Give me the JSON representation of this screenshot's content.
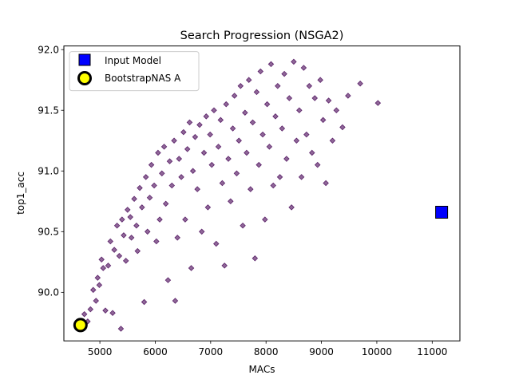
{
  "chart_data": {
    "type": "scatter",
    "title": "Search Progression (NSGA2)",
    "xlabel": "MACs",
    "ylabel": "top1_acc",
    "xlim": [
      4350,
      11500
    ],
    "ylim": [
      89.6,
      92.03
    ],
    "x_ticks": [
      5000,
      6000,
      7000,
      8000,
      9000,
      10000,
      11000
    ],
    "y_ticks": [
      90.0,
      90.5,
      91.0,
      91.5,
      92.0
    ],
    "x_tick_labels": [
      "5000",
      "6000",
      "7000",
      "8000",
      "9000",
      "10000",
      "11000"
    ],
    "y_tick_labels": [
      "90.0",
      "90.5",
      "91.0",
      "91.5",
      "92.0"
    ],
    "grid": false,
    "legend_position": "upper-left",
    "legend": [
      "Input Model",
      "BootstrapNAS A"
    ],
    "colors": {
      "search_points": "#440154",
      "input_model": "#0000ff",
      "bootstrapnas": "#ffff00",
      "marker_edge": "#000000"
    },
    "series": [
      {
        "name": "Input Model",
        "marker": "square",
        "points": [
          [
            11170,
            90.66
          ]
        ]
      },
      {
        "name": "BootstrapNAS A",
        "marker": "circle",
        "points": [
          [
            4650,
            89.73
          ]
        ]
      }
    ],
    "search_points": [
      [
        4700,
        89.72
      ],
      [
        4720,
        89.82
      ],
      [
        4780,
        89.76
      ],
      [
        4830,
        89.86
      ],
      [
        4880,
        90.02
      ],
      [
        4930,
        89.93
      ],
      [
        4960,
        90.12
      ],
      [
        4990,
        90.06
      ],
      [
        5030,
        90.27
      ],
      [
        5060,
        90.2
      ],
      [
        5100,
        89.85
      ],
      [
        5150,
        90.22
      ],
      [
        5190,
        90.42
      ],
      [
        5230,
        89.83
      ],
      [
        5260,
        90.35
      ],
      [
        5310,
        90.55
      ],
      [
        5350,
        90.3
      ],
      [
        5380,
        89.7
      ],
      [
        5400,
        90.6
      ],
      [
        5430,
        90.47
      ],
      [
        5470,
        90.26
      ],
      [
        5500,
        90.68
      ],
      [
        5550,
        90.62
      ],
      [
        5570,
        90.45
      ],
      [
        5620,
        90.77
      ],
      [
        5660,
        90.55
      ],
      [
        5680,
        90.34
      ],
      [
        5720,
        90.86
      ],
      [
        5760,
        90.7
      ],
      [
        5800,
        89.92
      ],
      [
        5830,
        90.95
      ],
      [
        5860,
        90.5
      ],
      [
        5900,
        90.78
      ],
      [
        5930,
        91.05
      ],
      [
        5980,
        90.88
      ],
      [
        6020,
        90.42
      ],
      [
        6050,
        91.15
      ],
      [
        6080,
        90.6
      ],
      [
        6120,
        90.98
      ],
      [
        6160,
        91.2
      ],
      [
        6190,
        90.73
      ],
      [
        6230,
        90.1
      ],
      [
        6260,
        91.08
      ],
      [
        6300,
        90.88
      ],
      [
        6340,
        91.25
      ],
      [
        6360,
        89.93
      ],
      [
        6400,
        90.45
      ],
      [
        6430,
        91.1
      ],
      [
        6470,
        90.95
      ],
      [
        6510,
        91.32
      ],
      [
        6540,
        90.6
      ],
      [
        6580,
        91.18
      ],
      [
        6620,
        91.4
      ],
      [
        6650,
        90.2
      ],
      [
        6680,
        91.0
      ],
      [
        6720,
        91.28
      ],
      [
        6760,
        90.85
      ],
      [
        6800,
        91.38
      ],
      [
        6840,
        90.5
      ],
      [
        6880,
        91.15
      ],
      [
        6920,
        91.45
      ],
      [
        6950,
        90.7
      ],
      [
        6990,
        91.3
      ],
      [
        7020,
        91.05
      ],
      [
        7060,
        91.5
      ],
      [
        7100,
        90.4
      ],
      [
        7140,
        91.2
      ],
      [
        7180,
        91.42
      ],
      [
        7210,
        90.9
      ],
      [
        7250,
        90.22
      ],
      [
        7280,
        91.55
      ],
      [
        7320,
        91.1
      ],
      [
        7360,
        90.75
      ],
      [
        7400,
        91.35
      ],
      [
        7430,
        91.62
      ],
      [
        7470,
        90.98
      ],
      [
        7510,
        91.25
      ],
      [
        7540,
        91.7
      ],
      [
        7580,
        90.55
      ],
      [
        7620,
        91.48
      ],
      [
        7650,
        91.15
      ],
      [
        7690,
        91.75
      ],
      [
        7720,
        90.85
      ],
      [
        7760,
        91.4
      ],
      [
        7800,
        90.28
      ],
      [
        7830,
        91.65
      ],
      [
        7870,
        91.05
      ],
      [
        7900,
        91.82
      ],
      [
        7940,
        91.3
      ],
      [
        7980,
        90.6
      ],
      [
        8020,
        91.55
      ],
      [
        8060,
        91.2
      ],
      [
        8090,
        91.88
      ],
      [
        8130,
        90.88
      ],
      [
        8170,
        91.45
      ],
      [
        8210,
        91.7
      ],
      [
        8250,
        90.95
      ],
      [
        8290,
        91.35
      ],
      [
        8330,
        91.8
      ],
      [
        8370,
        91.1
      ],
      [
        8420,
        91.6
      ],
      [
        8460,
        90.7
      ],
      [
        8500,
        91.9
      ],
      [
        8550,
        91.25
      ],
      [
        8600,
        91.5
      ],
      [
        8640,
        90.95
      ],
      [
        8680,
        91.85
      ],
      [
        8730,
        91.3
      ],
      [
        8780,
        91.7
      ],
      [
        8830,
        91.15
      ],
      [
        8880,
        91.6
      ],
      [
        8930,
        91.05
      ],
      [
        8980,
        91.75
      ],
      [
        9030,
        91.42
      ],
      [
        9080,
        90.9
      ],
      [
        9130,
        91.58
      ],
      [
        9200,
        91.25
      ],
      [
        9270,
        91.5
      ],
      [
        9380,
        91.36
      ],
      [
        9480,
        91.62
      ],
      [
        9700,
        91.72
      ],
      [
        10020,
        91.56
      ]
    ]
  }
}
